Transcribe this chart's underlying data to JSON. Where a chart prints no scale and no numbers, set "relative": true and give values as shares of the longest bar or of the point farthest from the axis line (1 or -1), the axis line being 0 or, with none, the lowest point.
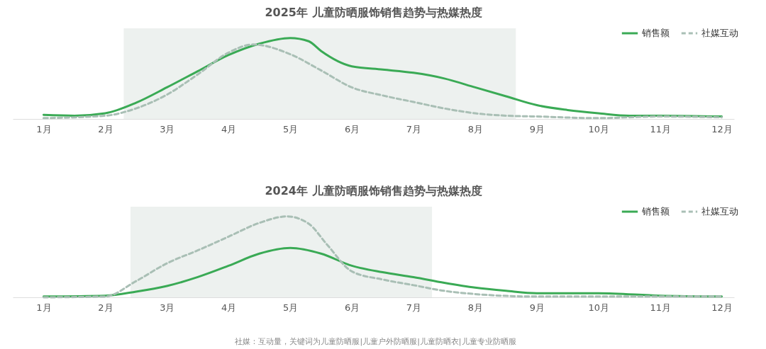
{
  "chart_data": [
    {
      "type": "line",
      "title": "2025年 儿童防晒服饰销售趋势与热媒热度",
      "relative": true,
      "grid": false,
      "legend": "top right",
      "xlim": [
        0.5,
        12.2
      ],
      "xticks": [
        {
          "value": 1,
          "label": "1月"
        },
        {
          "value": 2,
          "label": "2月"
        },
        {
          "value": 3,
          "label": "3月"
        },
        {
          "value": 4,
          "label": "4月"
        },
        {
          "value": 5,
          "label": "5月"
        },
        {
          "value": 6,
          "label": "6月"
        },
        {
          "value": 7,
          "label": "7月"
        },
        {
          "value": 8,
          "label": "8月"
        },
        {
          "value": 9,
          "label": "9月"
        },
        {
          "value": 10,
          "label": "10月"
        },
        {
          "value": 11,
          "label": "11月"
        },
        {
          "value": 12,
          "label": "12月"
        }
      ],
      "bands": [
        {
          "axis": "x",
          "from": 2.3,
          "to": 8.66,
          "color": "#edf1ef"
        }
      ],
      "series": [
        {
          "name": "销售额",
          "color": "#3aaa55",
          "line_style": "solid",
          "x": [
            1,
            1.5,
            2,
            2.5,
            3,
            3.5,
            4,
            4.5,
            5,
            5.3,
            5.5,
            6,
            6.5,
            7,
            7.5,
            8,
            8.5,
            9,
            9.5,
            10,
            10.5,
            11,
            12
          ],
          "values": [
            0.05,
            0.04,
            0.07,
            0.2,
            0.39,
            0.59,
            0.79,
            0.93,
            1,
            0.96,
            0.84,
            0.65,
            0.61,
            0.57,
            0.5,
            0.39,
            0.28,
            0.17,
            0.11,
            0.07,
            0.04,
            0.04,
            0.03
          ]
        },
        {
          "name": "社媒互动",
          "color": "#a9bfb5",
          "line_style": "dashed",
          "x": [
            1,
            2,
            2.5,
            3,
            3.5,
            4,
            4.4,
            5,
            5.5,
            6,
            6.5,
            7,
            7.5,
            8,
            8.5,
            9,
            10,
            11,
            12
          ],
          "values": [
            0.01,
            0.04,
            0.13,
            0.3,
            0.55,
            0.82,
            0.92,
            0.8,
            0.6,
            0.39,
            0.29,
            0.21,
            0.13,
            0.07,
            0.04,
            0.03,
            0.01,
            0.03,
            0.02
          ]
        }
      ]
    },
    {
      "type": "line",
      "title": "2024年 儿童防晒服饰销售趋势与热媒热度",
      "relative": true,
      "grid": false,
      "legend": "top right",
      "xlim": [
        0.5,
        12.2
      ],
      "xticks": [
        {
          "value": 1,
          "label": "1月"
        },
        {
          "value": 2,
          "label": "2月"
        },
        {
          "value": 3,
          "label": "3月"
        },
        {
          "value": 4,
          "label": "4月"
        },
        {
          "value": 5,
          "label": "5月"
        },
        {
          "value": 6,
          "label": "6月"
        },
        {
          "value": 7,
          "label": "7月"
        },
        {
          "value": 8,
          "label": "8月"
        },
        {
          "value": 9,
          "label": "9月"
        },
        {
          "value": 10,
          "label": "10月"
        },
        {
          "value": 11,
          "label": "11月"
        },
        {
          "value": 12,
          "label": "12月"
        }
      ],
      "bands": [
        {
          "axis": "x",
          "from": 2.41,
          "to": 7.3,
          "color": "#edf1ef"
        }
      ],
      "series": [
        {
          "name": "销售额",
          "color": "#3aaa55",
          "line_style": "solid",
          "x": [
            1,
            2,
            2.5,
            3,
            3.5,
            4,
            4.5,
            5,
            5.5,
            6,
            6.5,
            7,
            7.5,
            8,
            8.5,
            9,
            10,
            11,
            12
          ],
          "values": [
            0.01,
            0.02,
            0.07,
            0.14,
            0.25,
            0.39,
            0.54,
            0.61,
            0.54,
            0.39,
            0.31,
            0.25,
            0.18,
            0.12,
            0.08,
            0.05,
            0.05,
            0.02,
            0.01
          ]
        },
        {
          "name": "社媒互动",
          "color": "#a9bfb5",
          "line_style": "dashed",
          "x": [
            1,
            2,
            2.5,
            3,
            3.5,
            4,
            4.5,
            4.95,
            5.3,
            5.6,
            6,
            6.5,
            7,
            7.5,
            8,
            9,
            12
          ],
          "values": [
            0,
            0.01,
            0.2,
            0.42,
            0.58,
            0.75,
            0.92,
            1,
            0.91,
            0.65,
            0.32,
            0.22,
            0.15,
            0.08,
            0.04,
            0.01,
            0.01
          ]
        }
      ],
      "annotations": [
        "社媒：互动量，关键词为儿童防晒服|儿童户外防晒服|儿童防晒衣|儿童专业防晒服"
      ]
    }
  ]
}
